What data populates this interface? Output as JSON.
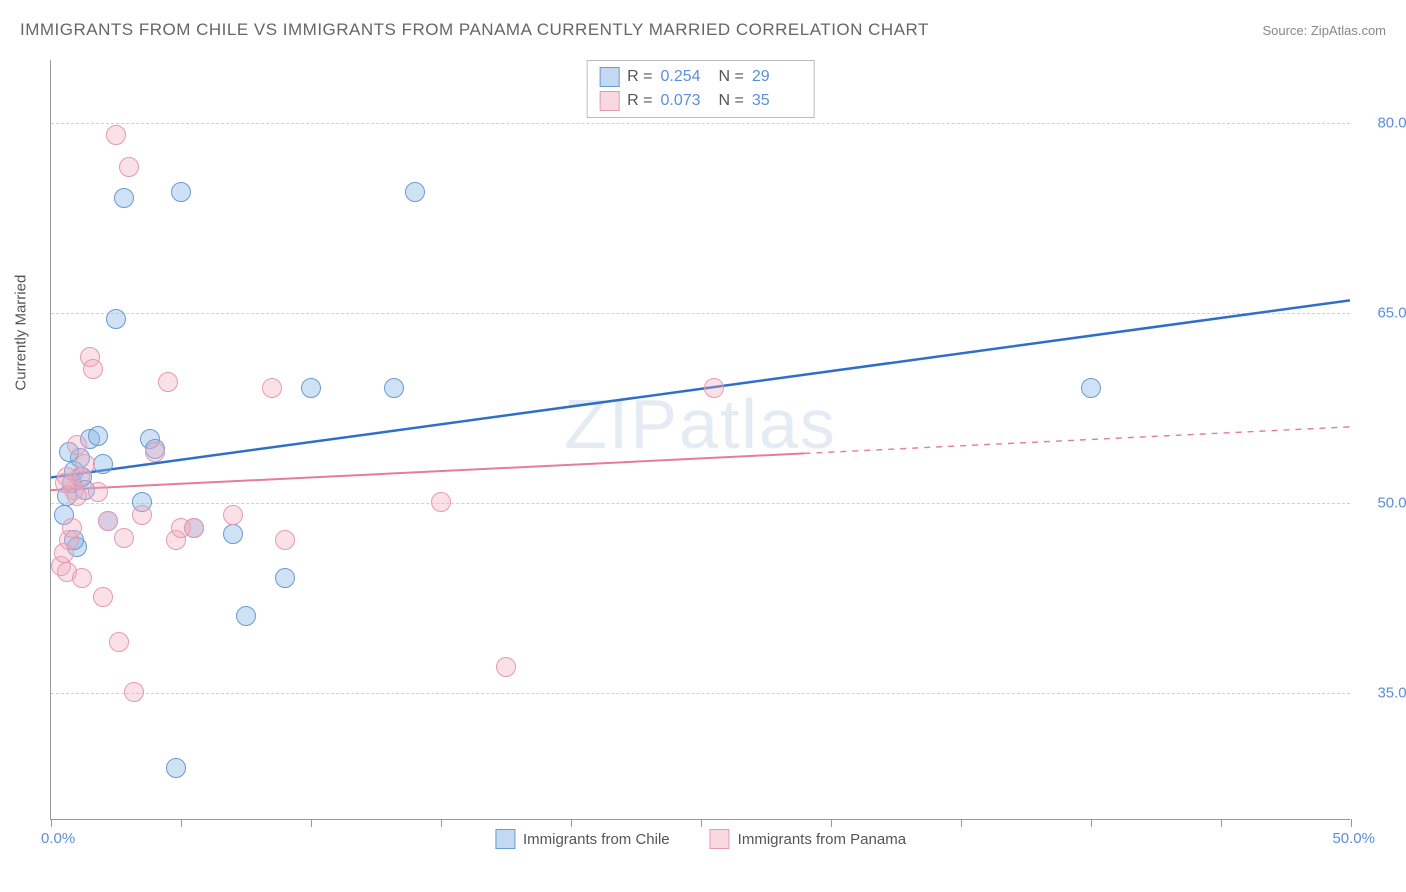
{
  "title": "IMMIGRANTS FROM CHILE VS IMMIGRANTS FROM PANAMA CURRENTLY MARRIED CORRELATION CHART",
  "source": "Source: ZipAtlas.com",
  "watermark": "ZIPatlas",
  "chart": {
    "type": "scatter",
    "xlim": [
      0,
      50
    ],
    "ylim": [
      25,
      85
    ],
    "x_tick_step": 5,
    "y_gridlines": [
      35,
      50,
      65,
      80
    ],
    "y_tick_labels": [
      "35.0%",
      "50.0%",
      "65.0%",
      "80.0%"
    ],
    "x_label_min": "0.0%",
    "x_label_max": "50.0%",
    "y_axis_title": "Currently Married",
    "background_color": "#ffffff",
    "grid_color": "#d0d0d0",
    "axis_color": "#999999",
    "label_color": "#5b8fd6",
    "marker_radius": 10,
    "series": [
      {
        "name": "Immigrants from Chile",
        "fill": "rgba(135,180,230,0.4)",
        "stroke": "#6a9bd1",
        "r_label": "R =",
        "r_value": "0.254",
        "n_label": "N =",
        "n_value": "29",
        "trend": {
          "x1": 0,
          "y1": 52,
          "x2": 50,
          "y2": 66,
          "color": "#2f6fc7",
          "width": 2.5,
          "solid_to_x": 50
        },
        "points": [
          [
            0.5,
            49
          ],
          [
            0.6,
            50.5
          ],
          [
            0.8,
            51.5
          ],
          [
            0.9,
            52.5
          ],
          [
            1.0,
            46.5
          ],
          [
            1.1,
            53.5
          ],
          [
            1.2,
            52
          ],
          [
            1.5,
            55
          ],
          [
            1.8,
            55.2
          ],
          [
            2.0,
            53
          ],
          [
            2.2,
            48.5
          ],
          [
            2.5,
            64.5
          ],
          [
            2.8,
            74
          ],
          [
            3.5,
            50
          ],
          [
            3.8,
            55
          ],
          [
            4.0,
            54.2
          ],
          [
            5.0,
            74.5
          ],
          [
            5.5,
            48
          ],
          [
            7.0,
            47.5
          ],
          [
            7.5,
            41
          ],
          [
            9.0,
            44
          ],
          [
            10.0,
            59
          ],
          [
            4.8,
            29
          ],
          [
            13.2,
            59
          ],
          [
            14.0,
            74.5
          ],
          [
            40.0,
            59
          ],
          [
            0.7,
            54
          ],
          [
            1.3,
            51
          ],
          [
            0.9,
            47
          ]
        ]
      },
      {
        "name": "Immigrants from Panama",
        "fill": "rgba(240,170,190,0.35)",
        "stroke": "#e69ab0",
        "r_label": "R =",
        "r_value": "0.073",
        "n_label": "N =",
        "n_value": "35",
        "trend": {
          "x1": 0,
          "y1": 51,
          "x2": 50,
          "y2": 56,
          "color": "#e37d9a",
          "width": 2,
          "solid_to_x": 29
        },
        "points": [
          [
            0.4,
            45
          ],
          [
            0.5,
            46
          ],
          [
            0.6,
            44.5
          ],
          [
            0.7,
            47
          ],
          [
            0.8,
            48
          ],
          [
            0.9,
            51
          ],
          [
            1.0,
            50.5
          ],
          [
            1.1,
            52
          ],
          [
            1.2,
            44
          ],
          [
            1.3,
            53
          ],
          [
            1.5,
            61.5
          ],
          [
            1.6,
            60.5
          ],
          [
            1.8,
            50.8
          ],
          [
            2.0,
            42.5
          ],
          [
            2.2,
            48.5
          ],
          [
            2.5,
            79
          ],
          [
            2.8,
            47.2
          ],
          [
            3.0,
            76.5
          ],
          [
            3.2,
            35
          ],
          [
            3.5,
            49
          ],
          [
            4.0,
            54
          ],
          [
            4.5,
            59.5
          ],
          [
            4.8,
            47
          ],
          [
            5.0,
            48
          ],
          [
            5.5,
            48
          ],
          [
            7.0,
            49
          ],
          [
            8.5,
            59
          ],
          [
            9.0,
            47
          ],
          [
            15.0,
            50
          ],
          [
            17.5,
            37
          ],
          [
            25.5,
            59
          ],
          [
            1.0,
            54.5
          ],
          [
            0.6,
            52
          ],
          [
            2.6,
            39
          ],
          [
            0.55,
            51.5
          ]
        ]
      }
    ]
  },
  "legend": {
    "series1": "Immigrants from Chile",
    "series2": "Immigrants from Panama"
  }
}
